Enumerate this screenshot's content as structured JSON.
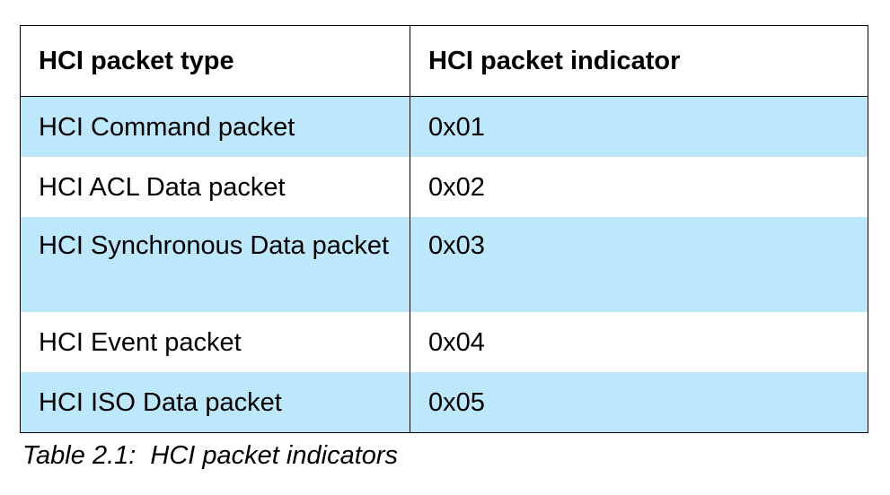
{
  "table": {
    "headers": [
      "HCI packet type",
      "HCI packet indicator"
    ],
    "rows": [
      {
        "type": "HCI Command packet",
        "indicator": "0x01"
      },
      {
        "type": "HCI ACL Data packet",
        "indicator": "0x02"
      },
      {
        "type": "HCI Synchronous Data packet",
        "indicator": "0x03"
      },
      {
        "type": "HCI Event packet",
        "indicator": "0x04"
      },
      {
        "type": "HCI ISO Data packet",
        "indicator": "0x05"
      }
    ],
    "colors": {
      "shaded_row": "#bde7fb",
      "plain_row": "#ffffff",
      "border": "#000000"
    }
  },
  "caption": "Table 2.1:  HCI packet indicators"
}
